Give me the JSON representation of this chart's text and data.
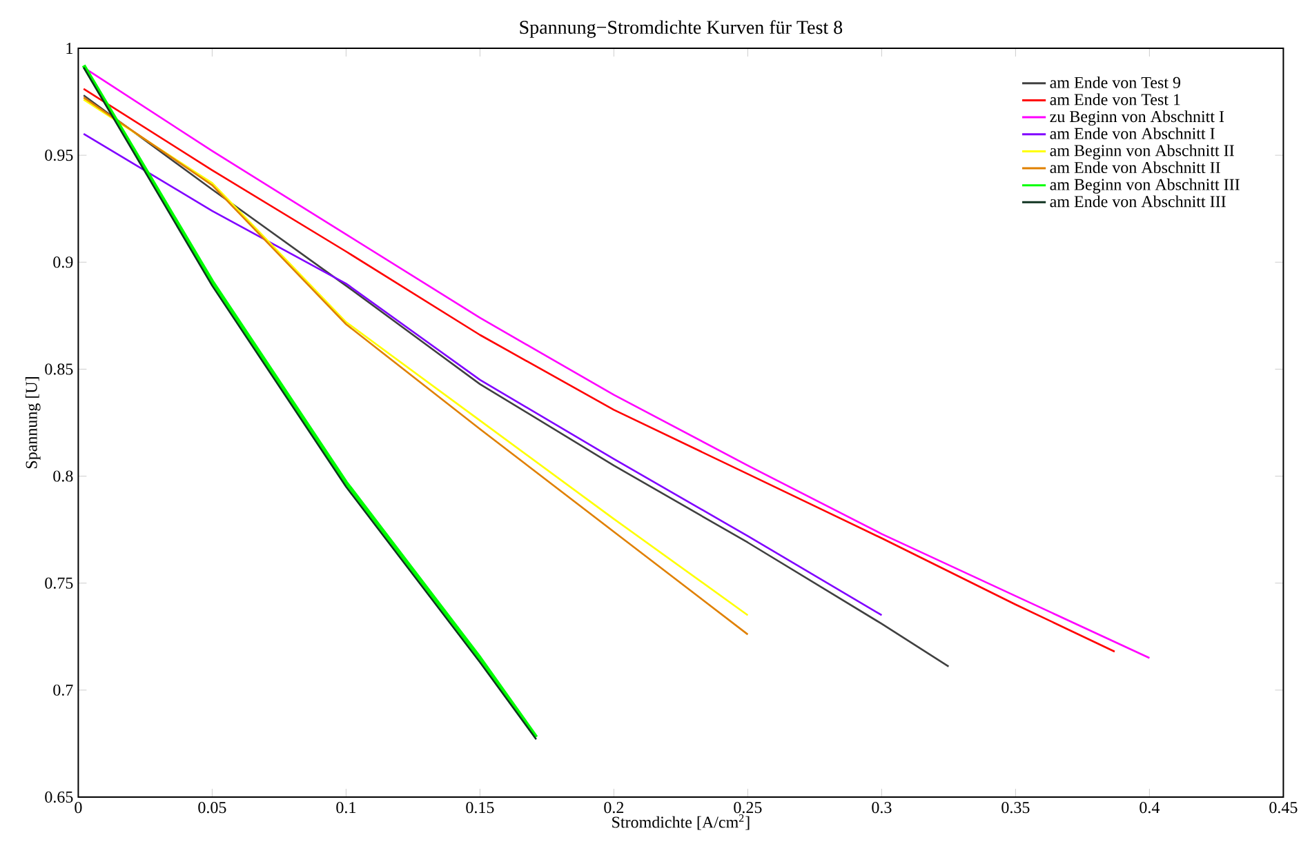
{
  "chart_data": {
    "type": "line",
    "title": "Spannung−Stromdichte Kurven für Test 8",
    "xlabel": "Stromdichte [A/cm$^{2}$]",
    "ylabel": "Spannung [U]",
    "xlim": [
      0,
      0.45
    ],
    "ylim": [
      0.65,
      1
    ],
    "xticks": [
      0,
      0.05,
      0.1,
      0.15,
      0.2,
      0.25,
      0.3,
      0.35,
      0.4,
      0.45
    ],
    "yticks": [
      0.65,
      0.7,
      0.75,
      0.8,
      0.85,
      0.9,
      0.95,
      1
    ],
    "legend": "top right",
    "grid": false,
    "marker": "none",
    "line_style": "solid",
    "series": [
      {
        "name": "am Ende von Test 9",
        "color": "#404040",
        "x": [
          0.002,
          0.05,
          0.1,
          0.15,
          0.2,
          0.25,
          0.3,
          0.325
        ],
        "values": [
          0.978,
          0.934,
          0.889,
          0.843,
          0.805,
          0.769,
          0.731,
          0.711
        ]
      },
      {
        "name": "am Ende von Test 1",
        "color": "#ff0000",
        "x": [
          0.002,
          0.05,
          0.1,
          0.15,
          0.2,
          0.25,
          0.3,
          0.35,
          0.387
        ],
        "values": [
          0.981,
          0.943,
          0.905,
          0.866,
          0.831,
          0.801,
          0.771,
          0.74,
          0.718
        ]
      },
      {
        "name": "zu Beginn von Abschnitt I",
        "color": "#ff00ff",
        "x": [
          0.002,
          0.05,
          0.1,
          0.15,
          0.2,
          0.25,
          0.3,
          0.35,
          0.4
        ],
        "values": [
          0.991,
          0.952,
          0.913,
          0.874,
          0.838,
          0.805,
          0.773,
          0.744,
          0.715
        ]
      },
      {
        "name": "am Ende von Abschnitt I",
        "color": "#8000ff",
        "x": [
          0.002,
          0.05,
          0.1,
          0.15,
          0.2,
          0.25,
          0.3
        ],
        "values": [
          0.96,
          0.924,
          0.89,
          0.845,
          0.808,
          0.772,
          0.735
        ]
      },
      {
        "name": "am Beginn von Abschnitt II",
        "color": "#ffff00",
        "x": [
          0.002,
          0.05,
          0.1,
          0.15,
          0.2,
          0.25
        ],
        "values": [
          0.976,
          0.937,
          0.872,
          0.826,
          0.78,
          0.735
        ]
      },
      {
        "name": "am Ende von Abschnitt II",
        "color": "#e08000",
        "x": [
          0.002,
          0.05,
          0.1,
          0.15,
          0.2,
          0.25
        ],
        "values": [
          0.977,
          0.936,
          0.871,
          0.822,
          0.774,
          0.726
        ]
      },
      {
        "name": "am Beginn von Abschnitt III",
        "color": "#00ff00",
        "x": [
          0.002,
          0.05,
          0.1,
          0.15,
          0.171
        ],
        "values": [
          0.992,
          0.891,
          0.797,
          0.715,
          0.678
        ]
      },
      {
        "name": "am Ende von Abschnitt III",
        "color": "#0f3320",
        "x": [
          0.002,
          0.05,
          0.1,
          0.15,
          0.171
        ],
        "values": [
          0.991,
          0.889,
          0.795,
          0.713,
          0.677
        ]
      }
    ]
  }
}
